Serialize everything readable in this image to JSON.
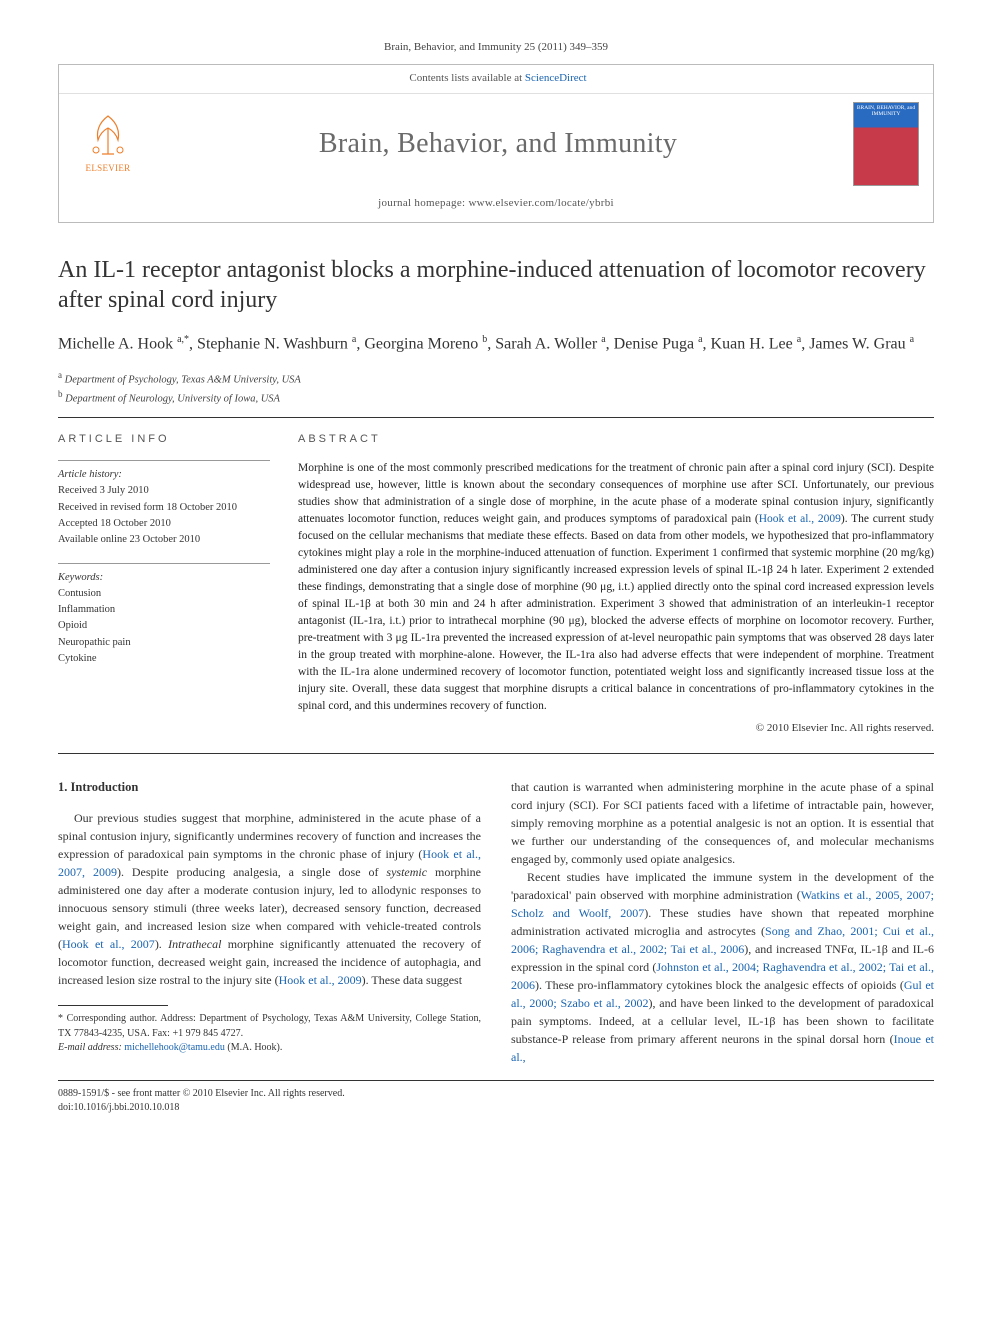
{
  "citation": "Brain, Behavior, and Immunity 25 (2011) 349–359",
  "header": {
    "contents_prefix": "Contents lists available at ",
    "contents_link": "ScienceDirect",
    "journal_name": "Brain, Behavior, and Immunity",
    "homepage_prefix": "journal homepage: ",
    "homepage_url": "www.elsevier.com/locate/ybrbi",
    "publisher": "ELSEVIER",
    "cover_text": "BRAIN, BEHAVIOR, and IMMUNITY"
  },
  "title": "An IL-1 receptor antagonist blocks a morphine-induced attenuation of locomotor recovery after spinal cord injury",
  "authors_html": "Michelle A. Hook <sup>a,*</sup>, Stephanie N. Washburn <sup>a</sup>, Georgina Moreno <sup>b</sup>, Sarah A. Woller <sup>a</sup>, Denise Puga <sup>a</sup>, Kuan H. Lee <sup>a</sup>, James W. Grau <sup>a</sup>",
  "affiliations": [
    {
      "sup": "a",
      "text": "Department of Psychology, Texas A&M University, USA"
    },
    {
      "sup": "b",
      "text": "Department of Neurology, University of Iowa, USA"
    }
  ],
  "article_info": {
    "heading": "ARTICLE INFO",
    "history_label": "Article history:",
    "history": [
      "Received 3 July 2010",
      "Received in revised form 18 October 2010",
      "Accepted 18 October 2010",
      "Available online 23 October 2010"
    ],
    "keywords_label": "Keywords:",
    "keywords": [
      "Contusion",
      "Inflammation",
      "Opioid",
      "Neuropathic pain",
      "Cytokine"
    ]
  },
  "abstract": {
    "heading": "ABSTRACT",
    "text": "Morphine is one of the most commonly prescribed medications for the treatment of chronic pain after a spinal cord injury (SCI). Despite widespread use, however, little is known about the secondary consequences of morphine use after SCI. Unfortunately, our previous studies show that administration of a single dose of morphine, in the acute phase of a moderate spinal contusion injury, significantly attenuates locomotor function, reduces weight gain, and produces symptoms of paradoxical pain (Hook et al., 2009). The current study focused on the cellular mechanisms that mediate these effects. Based on data from other models, we hypothesized that pro-inflammatory cytokines might play a role in the morphine-induced attenuation of function. Experiment 1 confirmed that systemic morphine (20 mg/kg) administered one day after a contusion injury significantly increased expression levels of spinal IL-1β 24 h later. Experiment 2 extended these findings, demonstrating that a single dose of morphine (90 μg, i.t.) applied directly onto the spinal cord increased expression levels of spinal IL-1β at both 30 min and 24 h after administration. Experiment 3 showed that administration of an interleukin-1 receptor antagonist (IL-1ra, i.t.) prior to intrathecal morphine (90 μg), blocked the adverse effects of morphine on locomotor recovery. Further, pre-treatment with 3 μg IL-1ra prevented the increased expression of at-level neuropathic pain symptoms that was observed 28 days later in the group treated with morphine-alone. However, the IL-1ra also had adverse effects that were independent of morphine. Treatment with the IL-1ra alone undermined recovery of locomotor function, potentiated weight loss and significantly increased tissue loss at the injury site. Overall, these data suggest that morphine disrupts a critical balance in concentrations of pro-inflammatory cytokines in the spinal cord, and this undermines recovery of function.",
    "copyright": "© 2010 Elsevier Inc. All rights reserved."
  },
  "body": {
    "section_heading": "1. Introduction",
    "col1_p1": "Our previous studies suggest that morphine, administered in the acute phase of a spinal contusion injury, significantly undermines recovery of function and increases the expression of paradoxical pain symptoms in the chronic phase of injury (Hook et al., 2007, 2009). Despite producing analgesia, a single dose of systemic morphine administered one day after a moderate contusion injury, led to allodynic responses to innocuous sensory stimuli (three weeks later), decreased sensory function, decreased weight gain, and increased lesion size when compared with vehicle-treated controls (Hook et al., 2007). Intrathecal morphine significantly attenuated the recovery of locomotor function, decreased weight gain, increased the incidence of autophagia, and increased lesion size rostral to the injury site (Hook et al., 2009). These data suggest",
    "col2_p1": "that caution is warranted when administering morphine in the acute phase of a spinal cord injury (SCI). For SCI patients faced with a lifetime of intractable pain, however, simply removing morphine as a potential analgesic is not an option. It is essential that we further our understanding of the consequences of, and molecular mechanisms engaged by, commonly used opiate analgesics.",
    "col2_p2": "Recent studies have implicated the immune system in the development of the 'paradoxical' pain observed with morphine administration (Watkins et al., 2005, 2007; Scholz and Woolf, 2007). These studies have shown that repeated morphine administration activated microglia and astrocytes (Song and Zhao, 2001; Cui et al., 2006; Raghavendra et al., 2002; Tai et al., 2006), and increased TNFα, IL-1β and IL-6 expression in the spinal cord (Johnston et al., 2004; Raghavendra et al., 2002; Tai et al., 2006). These pro-inflammatory cytokines block the analgesic effects of opioids (Gul et al., 2000; Szabo et al., 2002), and have been linked to the development of paradoxical pain symptoms. Indeed, at a cellular level, IL-1β has been shown to facilitate substance-P release from primary afferent neurons in the spinal dorsal horn (Inoue et al.,"
  },
  "footnote": {
    "corr": "* Corresponding author. Address: Department of Psychology, Texas A&M University, College Station, TX 77843-4235, USA. Fax: +1 979 845 4727.",
    "email_label": "E-mail address: ",
    "email": "michellehook@tamu.edu",
    "email_paren": " (M.A. Hook)."
  },
  "bottom": {
    "left1": "0889-1591/$ - see front matter © 2010 Elsevier Inc. All rights reserved.",
    "left2": "doi:10.1016/j.bbi.2010.10.018"
  },
  "colors": {
    "link": "#1a64b0",
    "publisher": "#ee7e2a",
    "rule": "#333333"
  }
}
